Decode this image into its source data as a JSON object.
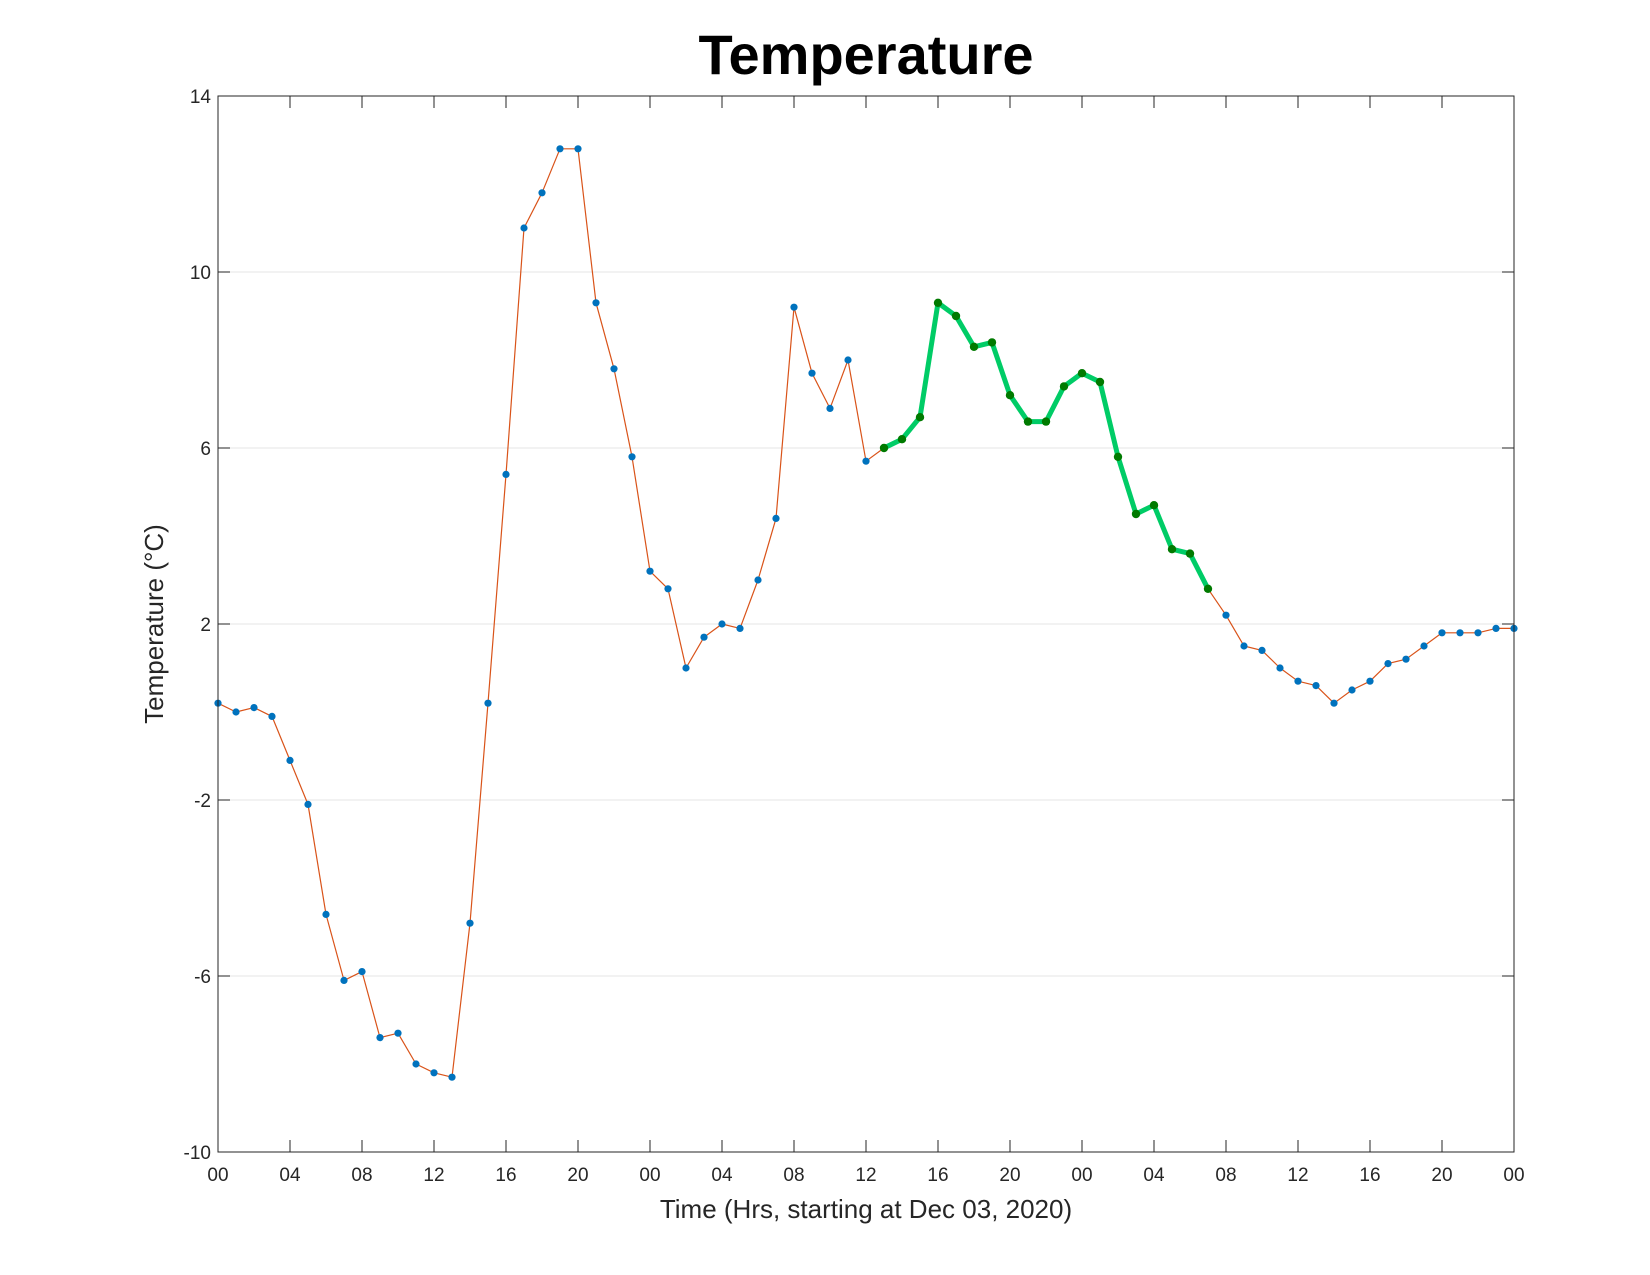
{
  "chart_data": {
    "type": "line",
    "title": "Temperature",
    "xlabel": "Time (Hrs, starting at Dec 03, 2020)",
    "ylabel": "Temperature (°C)",
    "ylim": [
      -10,
      14
    ],
    "xlim": [
      0,
      72
    ],
    "yticks": [
      14,
      10,
      6,
      2,
      -2,
      -6,
      -10
    ],
    "yticklabels": [
      "14",
      "10",
      "6",
      "2",
      "-2",
      "-6",
      "-10"
    ],
    "xticklabels": [
      "00",
      "04",
      "08",
      "12",
      "16",
      "20",
      "00",
      "04",
      "08",
      "12",
      "16",
      "20",
      "00",
      "04",
      "08",
      "12",
      "16",
      "20",
      "00"
    ],
    "grid": "horizontal",
    "colors": {
      "line": "#d95319",
      "marker": "#0072bd",
      "highlight_line": "#00cc66",
      "highlight_marker": "#007a00",
      "grid": "#e6e6e6",
      "axes": "#262626"
    },
    "series": [
      {
        "x": [
          0,
          1,
          2,
          3,
          4,
          5,
          6,
          7,
          8,
          9,
          10,
          11,
          12,
          13,
          14,
          15,
          16,
          17,
          18,
          19,
          20,
          21,
          22,
          23,
          24,
          25,
          26,
          27,
          28,
          29,
          30,
          31,
          32,
          33,
          34,
          35,
          36,
          37,
          38,
          39,
          40,
          41,
          42,
          43,
          44,
          45,
          46,
          47,
          48,
          49,
          50,
          51,
          52,
          53,
          54,
          55,
          56,
          57,
          58,
          59,
          60,
          61,
          62,
          63,
          64,
          65,
          66,
          67,
          68,
          69,
          70,
          71,
          72
        ],
        "y": [
          0.2,
          0.0,
          0.1,
          -0.1,
          -1.1,
          -2.1,
          -4.6,
          -6.1,
          -5.9,
          -7.4,
          -7.3,
          -8.0,
          -8.2,
          -8.3,
          -4.8,
          0.2,
          5.4,
          11.0,
          11.8,
          12.8,
          12.8,
          9.3,
          7.8,
          5.8,
          3.2,
          2.8,
          1.0,
          1.7,
          2.0,
          1.9,
          3.0,
          4.4,
          9.2,
          7.7,
          6.9,
          8.0,
          5.7,
          6.0,
          6.2,
          6.7,
          9.3,
          9.0,
          8.3,
          8.4,
          7.2,
          6.6,
          6.6,
          7.4,
          7.7,
          7.5,
          5.8,
          4.5,
          4.7,
          3.7,
          3.6,
          2.8,
          2.2,
          1.5,
          1.4,
          1.0,
          0.7,
          0.6,
          0.2,
          0.5,
          0.7,
          1.1,
          1.2,
          1.5,
          1.8,
          1.8,
          1.8,
          1.9,
          1.9
        ]
      }
    ],
    "highlight": {
      "x": [
        37,
        38,
        39,
        40,
        41,
        42,
        43,
        44,
        45,
        46,
        47,
        48,
        49,
        50,
        51,
        52,
        53,
        54,
        55
      ],
      "y": [
        6.0,
        6.2,
        6.7,
        9.3,
        9.0,
        8.3,
        8.4,
        7.2,
        6.6,
        6.6,
        7.4,
        7.7,
        7.5,
        5.8,
        4.5,
        4.7,
        3.7,
        3.6,
        2.8
      ]
    }
  }
}
